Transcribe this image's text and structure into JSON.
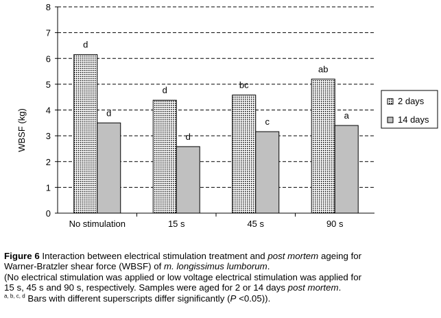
{
  "chart_data": {
    "type": "bar",
    "categories": [
      "No stimulation",
      "15 s",
      "45 s",
      "90 s"
    ],
    "series": [
      {
        "name": "2 days",
        "values": [
          6.15,
          4.38,
          4.58,
          5.2
        ],
        "letters": [
          "d",
          "d",
          "bc",
          "ab"
        ],
        "pattern": "dotted",
        "color": "#ffffff"
      },
      {
        "name": "14 days",
        "values": [
          3.5,
          2.58,
          3.16,
          3.4
        ],
        "letters": [
          "d",
          "d",
          "c",
          "a"
        ],
        "pattern": "solid",
        "color": "#c0c0c0"
      }
    ],
    "ylabel": "WBSF (kg)",
    "xlabel": "",
    "ylim": [
      0,
      8
    ],
    "yticks": [
      0,
      1,
      2,
      3,
      4,
      5,
      6,
      7,
      8
    ],
    "grid": "dashed horizontal",
    "legend_position": "right"
  },
  "caption": {
    "figure_label": "Figure 6",
    "line1_a": " Interaction between electrical stimulation treatment and ",
    "line1_italic": "post mortem",
    "line1_b": " ageing for",
    "line2_a": "Warner-Bratzler shear force (WBSF) of ",
    "line2_italic": "m. longissimus lumborum",
    "line2_b": ".",
    "line3": "(No electrical stimulation was applied or low voltage electrical stimulation was applied for",
    "line4_a": "15 s, 45 s and 90 s, respectively. Samples were aged for 2 or 14 days ",
    "line4_italic": "post mortem",
    "line4_b": ".",
    "line5_sup": "a, b, c, d",
    "line5_a": " Bars with different superscripts differ significantly (",
    "line5_italic": "P",
    "line5_b": " <0.05))."
  }
}
